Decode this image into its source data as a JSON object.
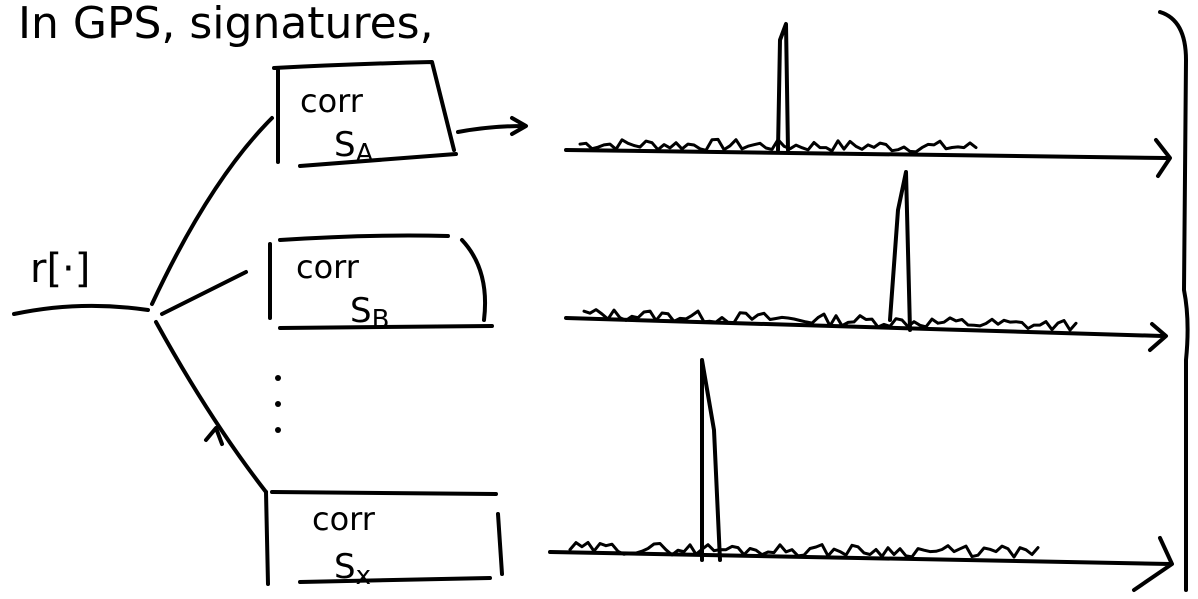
{
  "header": {
    "title": "In GPS, signatures,"
  },
  "input": {
    "label": "r[·]"
  },
  "nodes": [
    {
      "label": "corr",
      "signal": "S",
      "subscript": "A"
    },
    {
      "label": "corr",
      "signal": "S",
      "subscript": "B"
    },
    {
      "label": "corr",
      "signal": "S",
      "subscript": "x"
    }
  ]
}
